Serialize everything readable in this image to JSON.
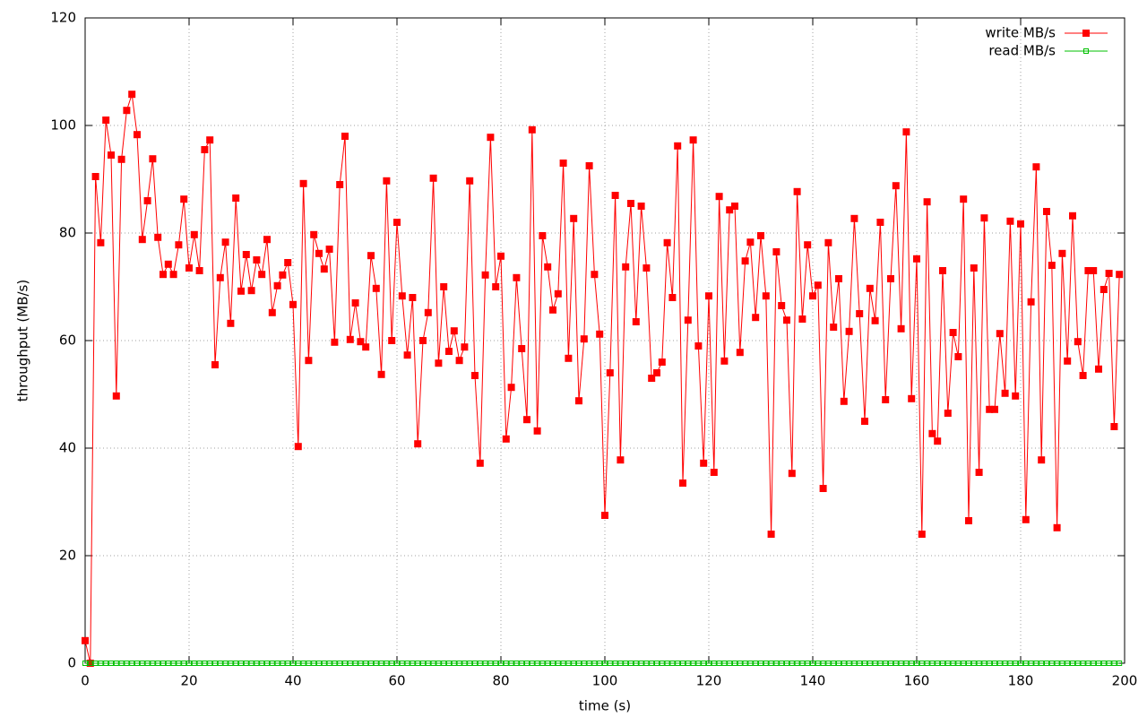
{
  "chart_data": {
    "type": "line",
    "xlabel": "time (s)",
    "ylabel": "throughput (MB/s)",
    "x": [
      0,
      1,
      2,
      3,
      4,
      5,
      6,
      7,
      8,
      9,
      10,
      11,
      12,
      13,
      14,
      15,
      16,
      17,
      18,
      19,
      20,
      21,
      22,
      23,
      24,
      25,
      26,
      27,
      28,
      29,
      30,
      31,
      32,
      33,
      34,
      35,
      36,
      37,
      38,
      39,
      40,
      41,
      42,
      43,
      44,
      45,
      46,
      47,
      48,
      49,
      50,
      51,
      52,
      53,
      54,
      55,
      56,
      57,
      58,
      59,
      60,
      61,
      62,
      63,
      64,
      65,
      66,
      67,
      68,
      69,
      70,
      71,
      72,
      73,
      74,
      75,
      76,
      77,
      78,
      79,
      80,
      81,
      82,
      83,
      84,
      85,
      86,
      87,
      88,
      89,
      90,
      91,
      92,
      93,
      94,
      95,
      96,
      97,
      98,
      99,
      100,
      101,
      102,
      103,
      104,
      105,
      106,
      107,
      108,
      109,
      110,
      111,
      112,
      113,
      114,
      115,
      116,
      117,
      118,
      119,
      120,
      121,
      122,
      123,
      124,
      125,
      126,
      127,
      128,
      129,
      130,
      131,
      132,
      133,
      134,
      135,
      136,
      137,
      138,
      139,
      140,
      141,
      142,
      143,
      144,
      145,
      146,
      147,
      148,
      149,
      150,
      151,
      152,
      153,
      154,
      155,
      156,
      157,
      158,
      159,
      160,
      161,
      162,
      163,
      164,
      165,
      166,
      167,
      168,
      169,
      170,
      171,
      172,
      173,
      174,
      175,
      176,
      177,
      178,
      179,
      180,
      181,
      182,
      183,
      184,
      185,
      186,
      187,
      188,
      189,
      190,
      191,
      192,
      193,
      194,
      195,
      196,
      197,
      198,
      199
    ],
    "series": [
      {
        "name": "write MB/s",
        "color": "#ff0000",
        "marker": "filled-square",
        "values": [
          4.2,
          0,
          90.5,
          78.2,
          101,
          94.5,
          49.7,
          93.7,
          102.8,
          105.8,
          98.3,
          78.8,
          86,
          93.8,
          79.2,
          72.3,
          74.2,
          72.3,
          77.8,
          86.3,
          73.5,
          79.7,
          73,
          95.5,
          97.3,
          55.5,
          71.7,
          78.3,
          63.2,
          86.5,
          69.2,
          76,
          69.3,
          75,
          72.3,
          78.8,
          65.2,
          70.2,
          72.2,
          74.5,
          66.7,
          40.3,
          89.2,
          56.3,
          79.7,
          76.2,
          73.3,
          77,
          59.7,
          89,
          98,
          60.2,
          67,
          59.8,
          58.8,
          75.8,
          69.7,
          53.7,
          89.7,
          60,
          82,
          68.3,
          57.3,
          68,
          40.8,
          60,
          65.2,
          90.2,
          55.8,
          70,
          58,
          61.8,
          56.3,
          58.8,
          89.7,
          53.5,
          37.2,
          72.2,
          97.8,
          70,
          75.7,
          41.7,
          51.3,
          71.7,
          58.5,
          45.3,
          99.2,
          43.2,
          79.5,
          73.7,
          65.7,
          68.7,
          93,
          56.7,
          82.7,
          48.8,
          60.3,
          92.5,
          72.3,
          61.2,
          27.5,
          54,
          87,
          37.8,
          73.7,
          85.5,
          63.5,
          85,
          73.5,
          53,
          54,
          56,
          78.2,
          68,
          96.2,
          33.5,
          63.8,
          97.3,
          59,
          37.2,
          68.3,
          35.5,
          86.8,
          56.2,
          84.3,
          85,
          57.8,
          74.8,
          78.3,
          64.3,
          79.5,
          68.3,
          24,
          76.5,
          66.5,
          63.8,
          35.3,
          87.7,
          64,
          77.8,
          68.3,
          70.3,
          32.5,
          78.2,
          62.5,
          71.5,
          48.7,
          61.7,
          82.7,
          65,
          45,
          69.7,
          63.7,
          82,
          49,
          71.5,
          88.8,
          62.2,
          98.8,
          49.2,
          75.2,
          24,
          85.8,
          42.7,
          41.3,
          73,
          46.5,
          61.5,
          57,
          86.3,
          26.5,
          73.5,
          35.5,
          82.8,
          47.2,
          47.2,
          61.3,
          50.2,
          82.2,
          49.7,
          81.7,
          26.7,
          67.2,
          92.3,
          37.8,
          84,
          74,
          25.2,
          76.2,
          56.2,
          83.2,
          59.8,
          53.5,
          73,
          73,
          54.7,
          69.5,
          72.5,
          44,
          72.3
        ]
      },
      {
        "name": "read MB/s",
        "color": "#00c000",
        "marker": "open-square",
        "values": [
          0,
          0,
          0,
          0,
          0,
          0,
          0,
          0,
          0,
          0,
          0,
          0,
          0,
          0,
          0,
          0,
          0,
          0,
          0,
          0,
          0,
          0,
          0,
          0,
          0,
          0,
          0,
          0,
          0,
          0,
          0,
          0,
          0,
          0,
          0,
          0,
          0,
          0,
          0,
          0,
          0,
          0,
          0,
          0,
          0,
          0,
          0,
          0,
          0,
          0,
          0,
          0,
          0,
          0,
          0,
          0,
          0,
          0,
          0,
          0,
          0,
          0,
          0,
          0,
          0,
          0,
          0,
          0,
          0,
          0,
          0,
          0,
          0,
          0,
          0,
          0,
          0,
          0,
          0,
          0,
          0,
          0,
          0,
          0,
          0,
          0,
          0,
          0,
          0,
          0,
          0,
          0,
          0,
          0,
          0,
          0,
          0,
          0,
          0,
          0,
          0,
          0,
          0,
          0,
          0,
          0,
          0,
          0,
          0,
          0,
          0,
          0,
          0,
          0,
          0,
          0,
          0,
          0,
          0,
          0,
          0,
          0,
          0,
          0,
          0,
          0,
          0,
          0,
          0,
          0,
          0,
          0,
          0,
          0,
          0,
          0,
          0,
          0,
          0,
          0,
          0,
          0,
          0,
          0,
          0,
          0,
          0,
          0,
          0,
          0,
          0,
          0,
          0,
          0,
          0,
          0,
          0,
          0,
          0,
          0,
          0,
          0,
          0,
          0,
          0,
          0,
          0,
          0,
          0,
          0,
          0,
          0,
          0,
          0,
          0,
          0,
          0,
          0,
          0,
          0,
          0,
          0,
          0,
          0,
          0,
          0,
          0,
          0,
          0,
          0,
          0,
          0,
          0,
          0,
          0,
          0,
          0,
          0,
          0,
          0
        ]
      }
    ],
    "xlim": [
      0,
      200
    ],
    "xticks": [
      0,
      20,
      40,
      60,
      80,
      100,
      120,
      140,
      160,
      180,
      200
    ],
    "ylim": [
      0,
      120
    ],
    "yticks": [
      0,
      20,
      40,
      60,
      80,
      100,
      120
    ],
    "grid": true,
    "legend": "top-right"
  }
}
